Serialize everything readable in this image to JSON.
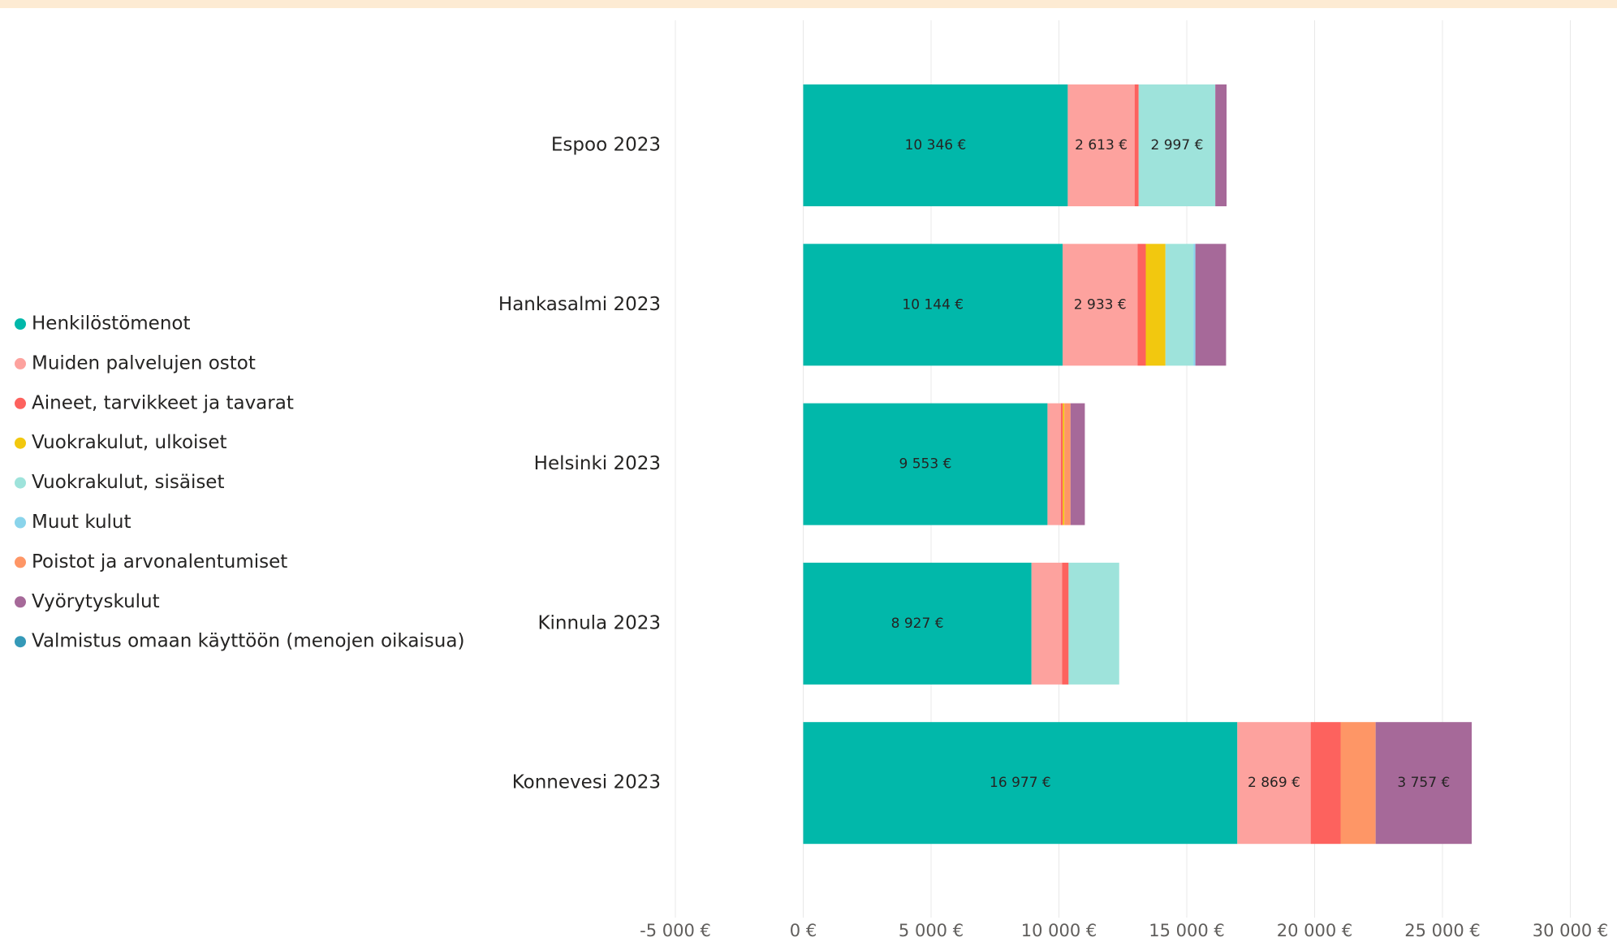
{
  "chart_data": {
    "type": "stacked_barh",
    "categories": [
      "Espoo 2023",
      "Hankasalmi 2023",
      "Helsinki 2023",
      "Kinnula 2023",
      "Konnevesi 2023"
    ],
    "series": [
      {
        "name": "Henkilöstömenot",
        "color": "#01B8AA",
        "values": [
          10346,
          10144,
          9553,
          8927,
          16977
        ],
        "value_labels": [
          "10 346 €",
          "10 144 €",
          "9 553 €",
          "8 927 €",
          "16 977 €"
        ]
      },
      {
        "name": "Muiden palvelujen ostot",
        "color": "#FDA29E",
        "values": [
          2613,
          2933,
          520,
          1200,
          2869
        ],
        "value_labels": [
          "2 613 €",
          "2 933 €",
          null,
          null,
          "2 869 €"
        ]
      },
      {
        "name": "Aineet, tarvikkeet ja tavarat",
        "color": "#FD625E",
        "values": [
          160,
          320,
          80,
          250,
          1170
        ]
      },
      {
        "name": "Vuokrakulut, ulkoiset",
        "color": "#F2C80F",
        "values": [
          0,
          770,
          60,
          0,
          0
        ]
      },
      {
        "name": "Vuokrakulut, sisäiset",
        "color": "#9EE3DB",
        "values": [
          2997,
          1090,
          0,
          1980,
          0
        ],
        "value_labels": [
          "2 997 €",
          null,
          null,
          null,
          null
        ]
      },
      {
        "name": "Muut kulut",
        "color": "#8AD4EB",
        "values": [
          0,
          80,
          0,
          0,
          0
        ]
      },
      {
        "name": "Poistot ja arvonalentumiset",
        "color": "#FE9666",
        "values": [
          0,
          0,
          240,
          0,
          1370
        ]
      },
      {
        "name": "Vyörytyskulut",
        "color": "#A66999",
        "values": [
          440,
          1200,
          560,
          0,
          3757
        ],
        "value_labels": [
          null,
          null,
          null,
          null,
          "3 757 €"
        ]
      },
      {
        "name": "Valmistus omaan käyttöön (menojen oikaisua)",
        "color": "#3599B8",
        "values": [
          0,
          0,
          0,
          0,
          0
        ]
      }
    ],
    "xlim": [
      -5000,
      30000
    ],
    "xticks": [
      {
        "value": -5000,
        "label": "-5 000 €"
      },
      {
        "value": 0,
        "label": "0 €"
      },
      {
        "value": 5000,
        "label": "5 000 €"
      },
      {
        "value": 10000,
        "label": "10 000 €"
      },
      {
        "value": 15000,
        "label": "15 000 €"
      },
      {
        "value": 20000,
        "label": "20 000 €"
      },
      {
        "value": 25000,
        "label": "25 000 €"
      },
      {
        "value": 30000,
        "label": "30 000 €"
      }
    ],
    "grid": true,
    "legend": "left"
  }
}
